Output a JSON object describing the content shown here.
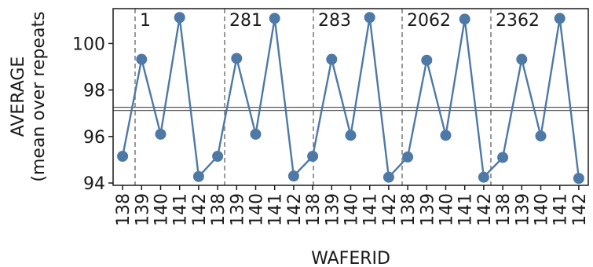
{
  "chart_data": {
    "type": "line",
    "xlabel": "WAFERID",
    "ylabel_lines": [
      "AVERAGE",
      "(mean over repeats"
    ],
    "ylim": [
      93.9,
      101.5
    ],
    "yticks": [
      94,
      96,
      98,
      100
    ],
    "grid": false,
    "legend": "none",
    "reference_line": 97.19,
    "groups": [
      {
        "label": "1",
        "categories": [
          "138",
          "139",
          "140",
          "141",
          "142"
        ],
        "values": [
          95.15,
          99.32,
          96.1,
          101.12,
          94.28
        ]
      },
      {
        "label": "281",
        "categories": [
          "138",
          "139",
          "140",
          "141",
          "142"
        ],
        "values": [
          95.15,
          99.36,
          96.1,
          101.08,
          94.3
        ]
      },
      {
        "label": "283",
        "categories": [
          "138",
          "139",
          "140",
          "141",
          "142"
        ],
        "values": [
          95.15,
          99.32,
          96.05,
          101.12,
          94.25
        ]
      },
      {
        "label": "2062",
        "categories": [
          "138",
          "139",
          "140",
          "141",
          "142"
        ],
        "values": [
          95.12,
          99.28,
          96.05,
          101.05,
          94.25
        ]
      },
      {
        "label": "2362",
        "categories": [
          "138",
          "139",
          "140",
          "141",
          "142"
        ],
        "values": [
          95.1,
          99.32,
          96.02,
          101.08,
          94.2
        ]
      }
    ],
    "colors": {
      "series": "#4e79a7",
      "separator": "#808080",
      "reference": "#555555",
      "axis": "#1a1a1a"
    }
  }
}
